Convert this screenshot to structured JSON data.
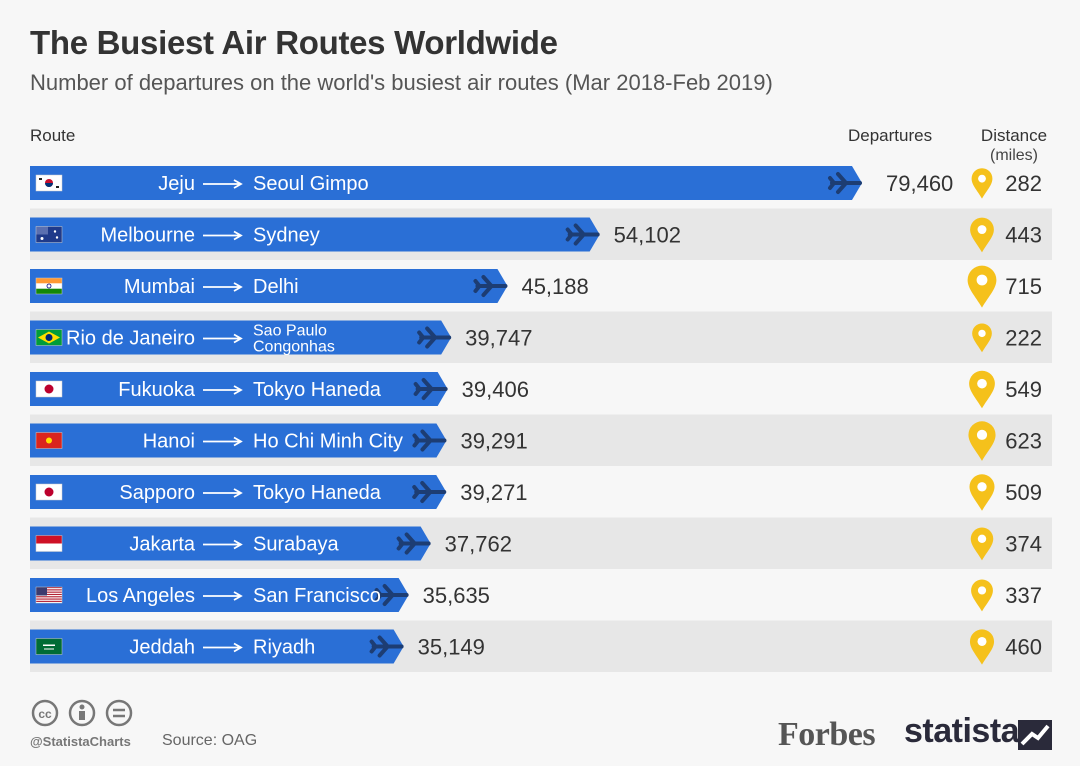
{
  "header": {
    "title": "The Busiest Air Routes Worldwide",
    "subtitle": "Number of departures on the world's busiest air routes (Mar 2018-Feb 2019)"
  },
  "columns": {
    "route": "Route",
    "departures": "Departures",
    "distance": "Distance",
    "distance_unit": "(miles)"
  },
  "footer": {
    "handle": "@StatistaCharts",
    "source": "Source: OAG",
    "brand_forbes": "Forbes",
    "brand_statista": "statista"
  },
  "colors": {
    "bar": "#2a6fd6",
    "pin": "#f5c11b",
    "row_alt": "#e7e7e7"
  },
  "chart_data": {
    "type": "bar",
    "title": "The Busiest Air Routes Worldwide",
    "categories": [
      {
        "from": "Jeju",
        "to": "Seoul Gimpo",
        "country": "KR"
      },
      {
        "from": "Melbourne",
        "to": "Sydney",
        "country": "AU"
      },
      {
        "from": "Mumbai",
        "to": "Delhi",
        "country": "IN"
      },
      {
        "from": "Rio de Janeiro",
        "to": "Sao Paulo Congonhas",
        "country": "BR"
      },
      {
        "from": "Fukuoka",
        "to": "Tokyo Haneda",
        "country": "JP"
      },
      {
        "from": "Hanoi",
        "to": "Ho Chi Minh City",
        "country": "VN"
      },
      {
        "from": "Sapporo",
        "to": "Tokyo Haneda",
        "country": "JP"
      },
      {
        "from": "Jakarta",
        "to": "Surabaya",
        "country": "ID"
      },
      {
        "from": "Los Angeles",
        "to": "San Francisco",
        "country": "US"
      },
      {
        "from": "Jeddah",
        "to": "Riyadh",
        "country": "SA"
      }
    ],
    "series": [
      {
        "name": "Departures",
        "values": [
          79460,
          54102,
          45188,
          39747,
          39406,
          39291,
          39271,
          37762,
          35635,
          35149
        ],
        "labels": [
          "79,460",
          "54,102",
          "45,188",
          "39,747",
          "39,406",
          "39,291",
          "39,271",
          "37,762",
          "35,635",
          "35,149"
        ]
      },
      {
        "name": "Distance",
        "values": [
          282,
          443,
          715,
          222,
          549,
          623,
          509,
          374,
          337,
          460
        ]
      }
    ]
  }
}
